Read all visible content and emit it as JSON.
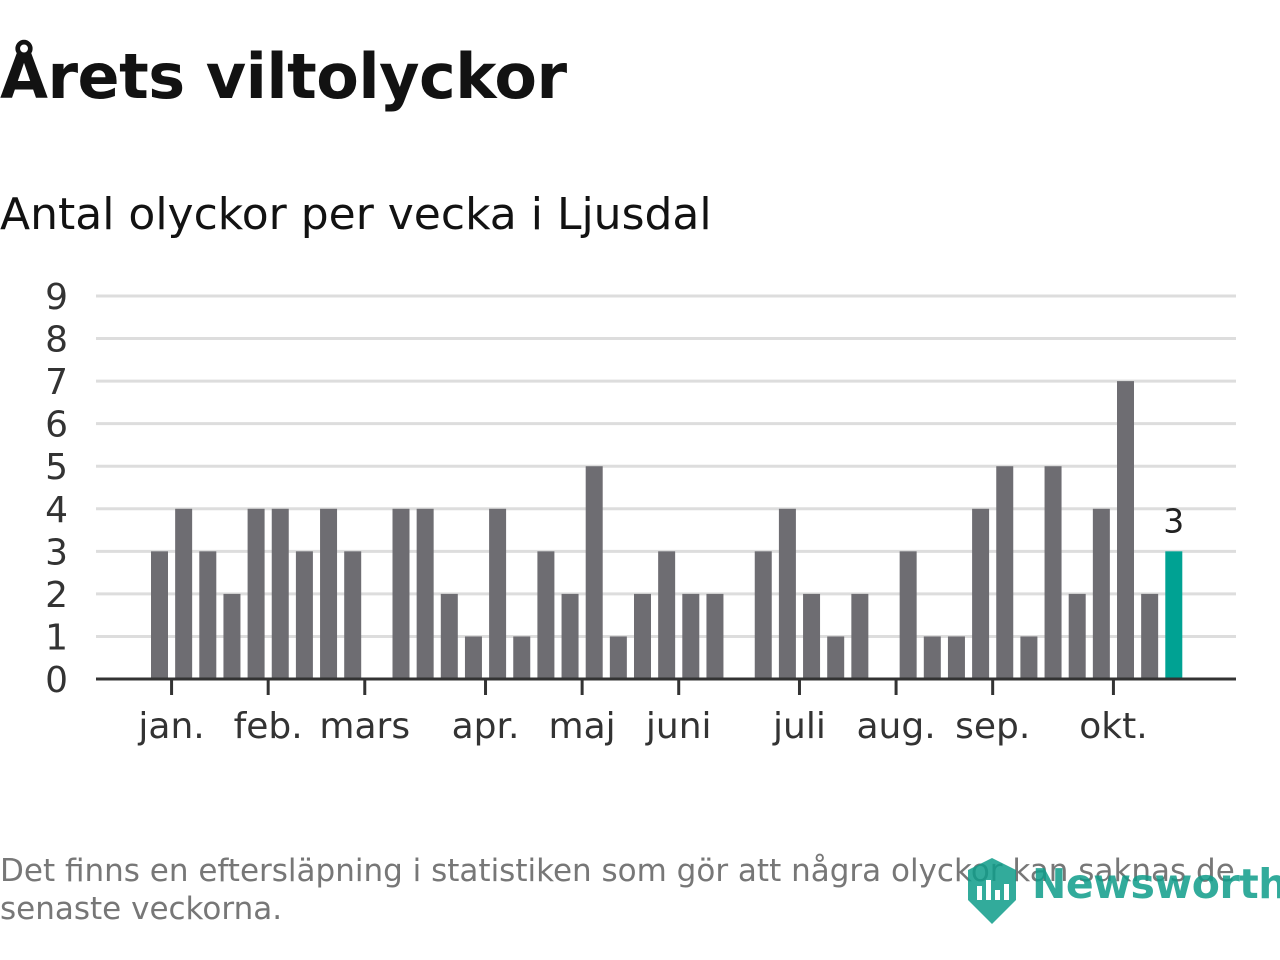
{
  "chart_data": {
    "type": "bar",
    "title": "Årets viltolyckor",
    "subtitle": "Antal olyckor per vecka i Ljusdal",
    "xlabel": "",
    "ylabel": "",
    "ylim": [
      0,
      9
    ],
    "yticks": [
      "0",
      "1",
      "2",
      "3",
      "4",
      "5",
      "6",
      "7",
      "8",
      "9"
    ],
    "grid": true,
    "weeks": [
      1,
      2,
      3,
      4,
      5,
      6,
      7,
      8,
      9,
      10,
      11,
      12,
      13,
      14,
      15,
      16,
      17,
      18,
      19,
      20,
      21,
      22,
      23,
      24,
      25,
      26,
      27,
      28,
      29,
      30,
      31,
      32,
      33,
      34,
      35,
      36,
      37,
      38,
      39,
      40,
      41,
      42,
      43
    ],
    "values": [
      3,
      4,
      3,
      2,
      4,
      4,
      3,
      4,
      3,
      0,
      4,
      4,
      2,
      1,
      4,
      1,
      3,
      2,
      5,
      1,
      2,
      3,
      2,
      2,
      0,
      3,
      4,
      2,
      1,
      2,
      0,
      3,
      1,
      1,
      4,
      5,
      1,
      5,
      2,
      4,
      7,
      2,
      3
    ],
    "highlight_index": 42,
    "highlight_label": "3",
    "month_ticks": [
      {
        "label": "jan.",
        "week": 1.5
      },
      {
        "label": "feb.",
        "week": 5.5
      },
      {
        "label": "mars",
        "week": 9.5
      },
      {
        "label": "apr.",
        "week": 14.5
      },
      {
        "label": "maj",
        "week": 18.5
      },
      {
        "label": "juni",
        "week": 22.5
      },
      {
        "label": "juli",
        "week": 27.5
      },
      {
        "label": "aug.",
        "week": 31.5
      },
      {
        "label": "sep.",
        "week": 35.5
      },
      {
        "label": "okt.",
        "week": 40.5
      }
    ],
    "colors": {
      "bar": "#6e6d72",
      "highlight": "#00a293",
      "grid": "#dddddd",
      "axis": "#333333",
      "tick_label": "#333333"
    }
  },
  "footnote": "Det finns en eftersläpning i statistiken som gör att några olyckor kan saknas de senaste veckorna.",
  "brand": {
    "name": "Newsworthy",
    "icon": "newsworthy-logo-icon"
  }
}
